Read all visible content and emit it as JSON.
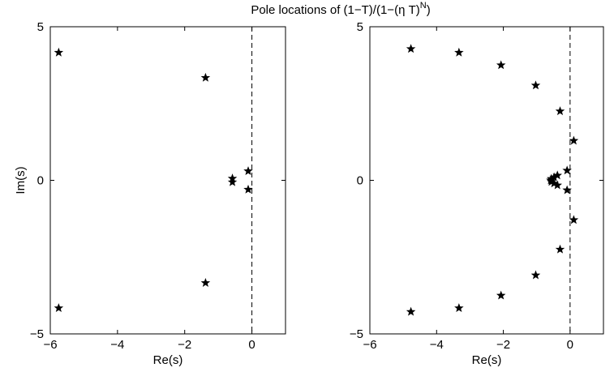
{
  "title": {
    "prefix": "Pole locations of (1−T)/(1−(η T)",
    "superscript": "N",
    "suffix": ")"
  },
  "chart_data": [
    {
      "type": "scatter",
      "marker": "star",
      "xlabel": "Re(s)",
      "ylabel": "Im(s)",
      "xlim": [
        -6,
        1
      ],
      "ylim": [
        -5,
        5
      ],
      "xticks": [
        -6,
        -4,
        -2,
        0
      ],
      "yticks": [
        -5,
        0,
        5
      ],
      "xtick_labels": [
        "−6",
        "−4",
        "−2",
        "0"
      ],
      "ytick_labels": [
        "−5",
        "0",
        "5"
      ],
      "reference_line": {
        "x": 0,
        "style": "dashed"
      },
      "points": [
        {
          "x": -5.75,
          "y": 4.16
        },
        {
          "x": -5.75,
          "y": -4.16
        },
        {
          "x": -1.38,
          "y": 3.34
        },
        {
          "x": -1.38,
          "y": -3.34
        },
        {
          "x": -0.58,
          "y": 0.06
        },
        {
          "x": -0.58,
          "y": -0.06
        },
        {
          "x": -0.11,
          "y": 0.3
        },
        {
          "x": -0.11,
          "y": -0.3
        }
      ]
    },
    {
      "type": "scatter",
      "marker": "star",
      "xlabel": "Re(s)",
      "ylabel": "",
      "xlim": [
        -6,
        1
      ],
      "ylim": [
        -5,
        5
      ],
      "xticks": [
        -6,
        -4,
        -2,
        0
      ],
      "yticks": [
        -5,
        0,
        5
      ],
      "xtick_labels": [
        "−6",
        "−4",
        "−2",
        "0"
      ],
      "ytick_labels": [
        "−5",
        "0",
        "5"
      ],
      "reference_line": {
        "x": 0,
        "style": "dashed"
      },
      "points": [
        {
          "x": -4.77,
          "y": 4.28
        },
        {
          "x": -4.77,
          "y": -4.28
        },
        {
          "x": -3.33,
          "y": 4.16
        },
        {
          "x": -3.33,
          "y": -4.16
        },
        {
          "x": -2.07,
          "y": 3.75
        },
        {
          "x": -2.07,
          "y": -3.75
        },
        {
          "x": -1.03,
          "y": 3.09
        },
        {
          "x": -1.03,
          "y": -3.09
        },
        {
          "x": -0.3,
          "y": 2.25
        },
        {
          "x": -0.3,
          "y": -2.25
        },
        {
          "x": 0.11,
          "y": 1.29
        },
        {
          "x": 0.11,
          "y": -1.29
        },
        {
          "x": -0.09,
          "y": 0.32
        },
        {
          "x": -0.09,
          "y": -0.32
        },
        {
          "x": -0.38,
          "y": 0.16
        },
        {
          "x": -0.38,
          "y": -0.16
        },
        {
          "x": -0.48,
          "y": 0.1
        },
        {
          "x": -0.48,
          "y": -0.1
        },
        {
          "x": -0.56,
          "y": 0.05
        },
        {
          "x": -0.56,
          "y": -0.05
        },
        {
          "x": -0.58,
          "y": 0.0
        }
      ]
    }
  ]
}
